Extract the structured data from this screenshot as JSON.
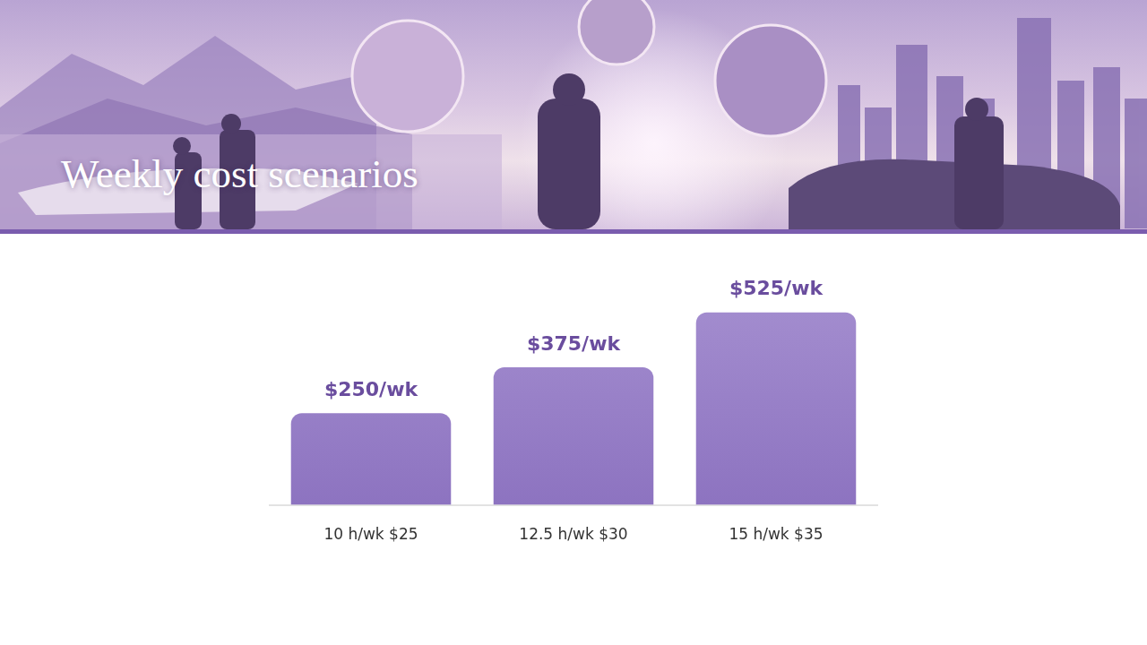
{
  "chart_data": {
    "type": "bar",
    "title": "Weekly cost scenarios",
    "categories": [
      "10 h/wk $25",
      "12.5 h/wk $30",
      "15 h/wk $35"
    ],
    "values": [
      250,
      375,
      525
    ],
    "value_labels": [
      "$250/wk",
      "$375/wk",
      "$525/wk"
    ],
    "color": "#8b71bf",
    "ylim": [
      0,
      600
    ],
    "grid": false,
    "data_labels": true,
    "tick_labels": "x"
  }
}
